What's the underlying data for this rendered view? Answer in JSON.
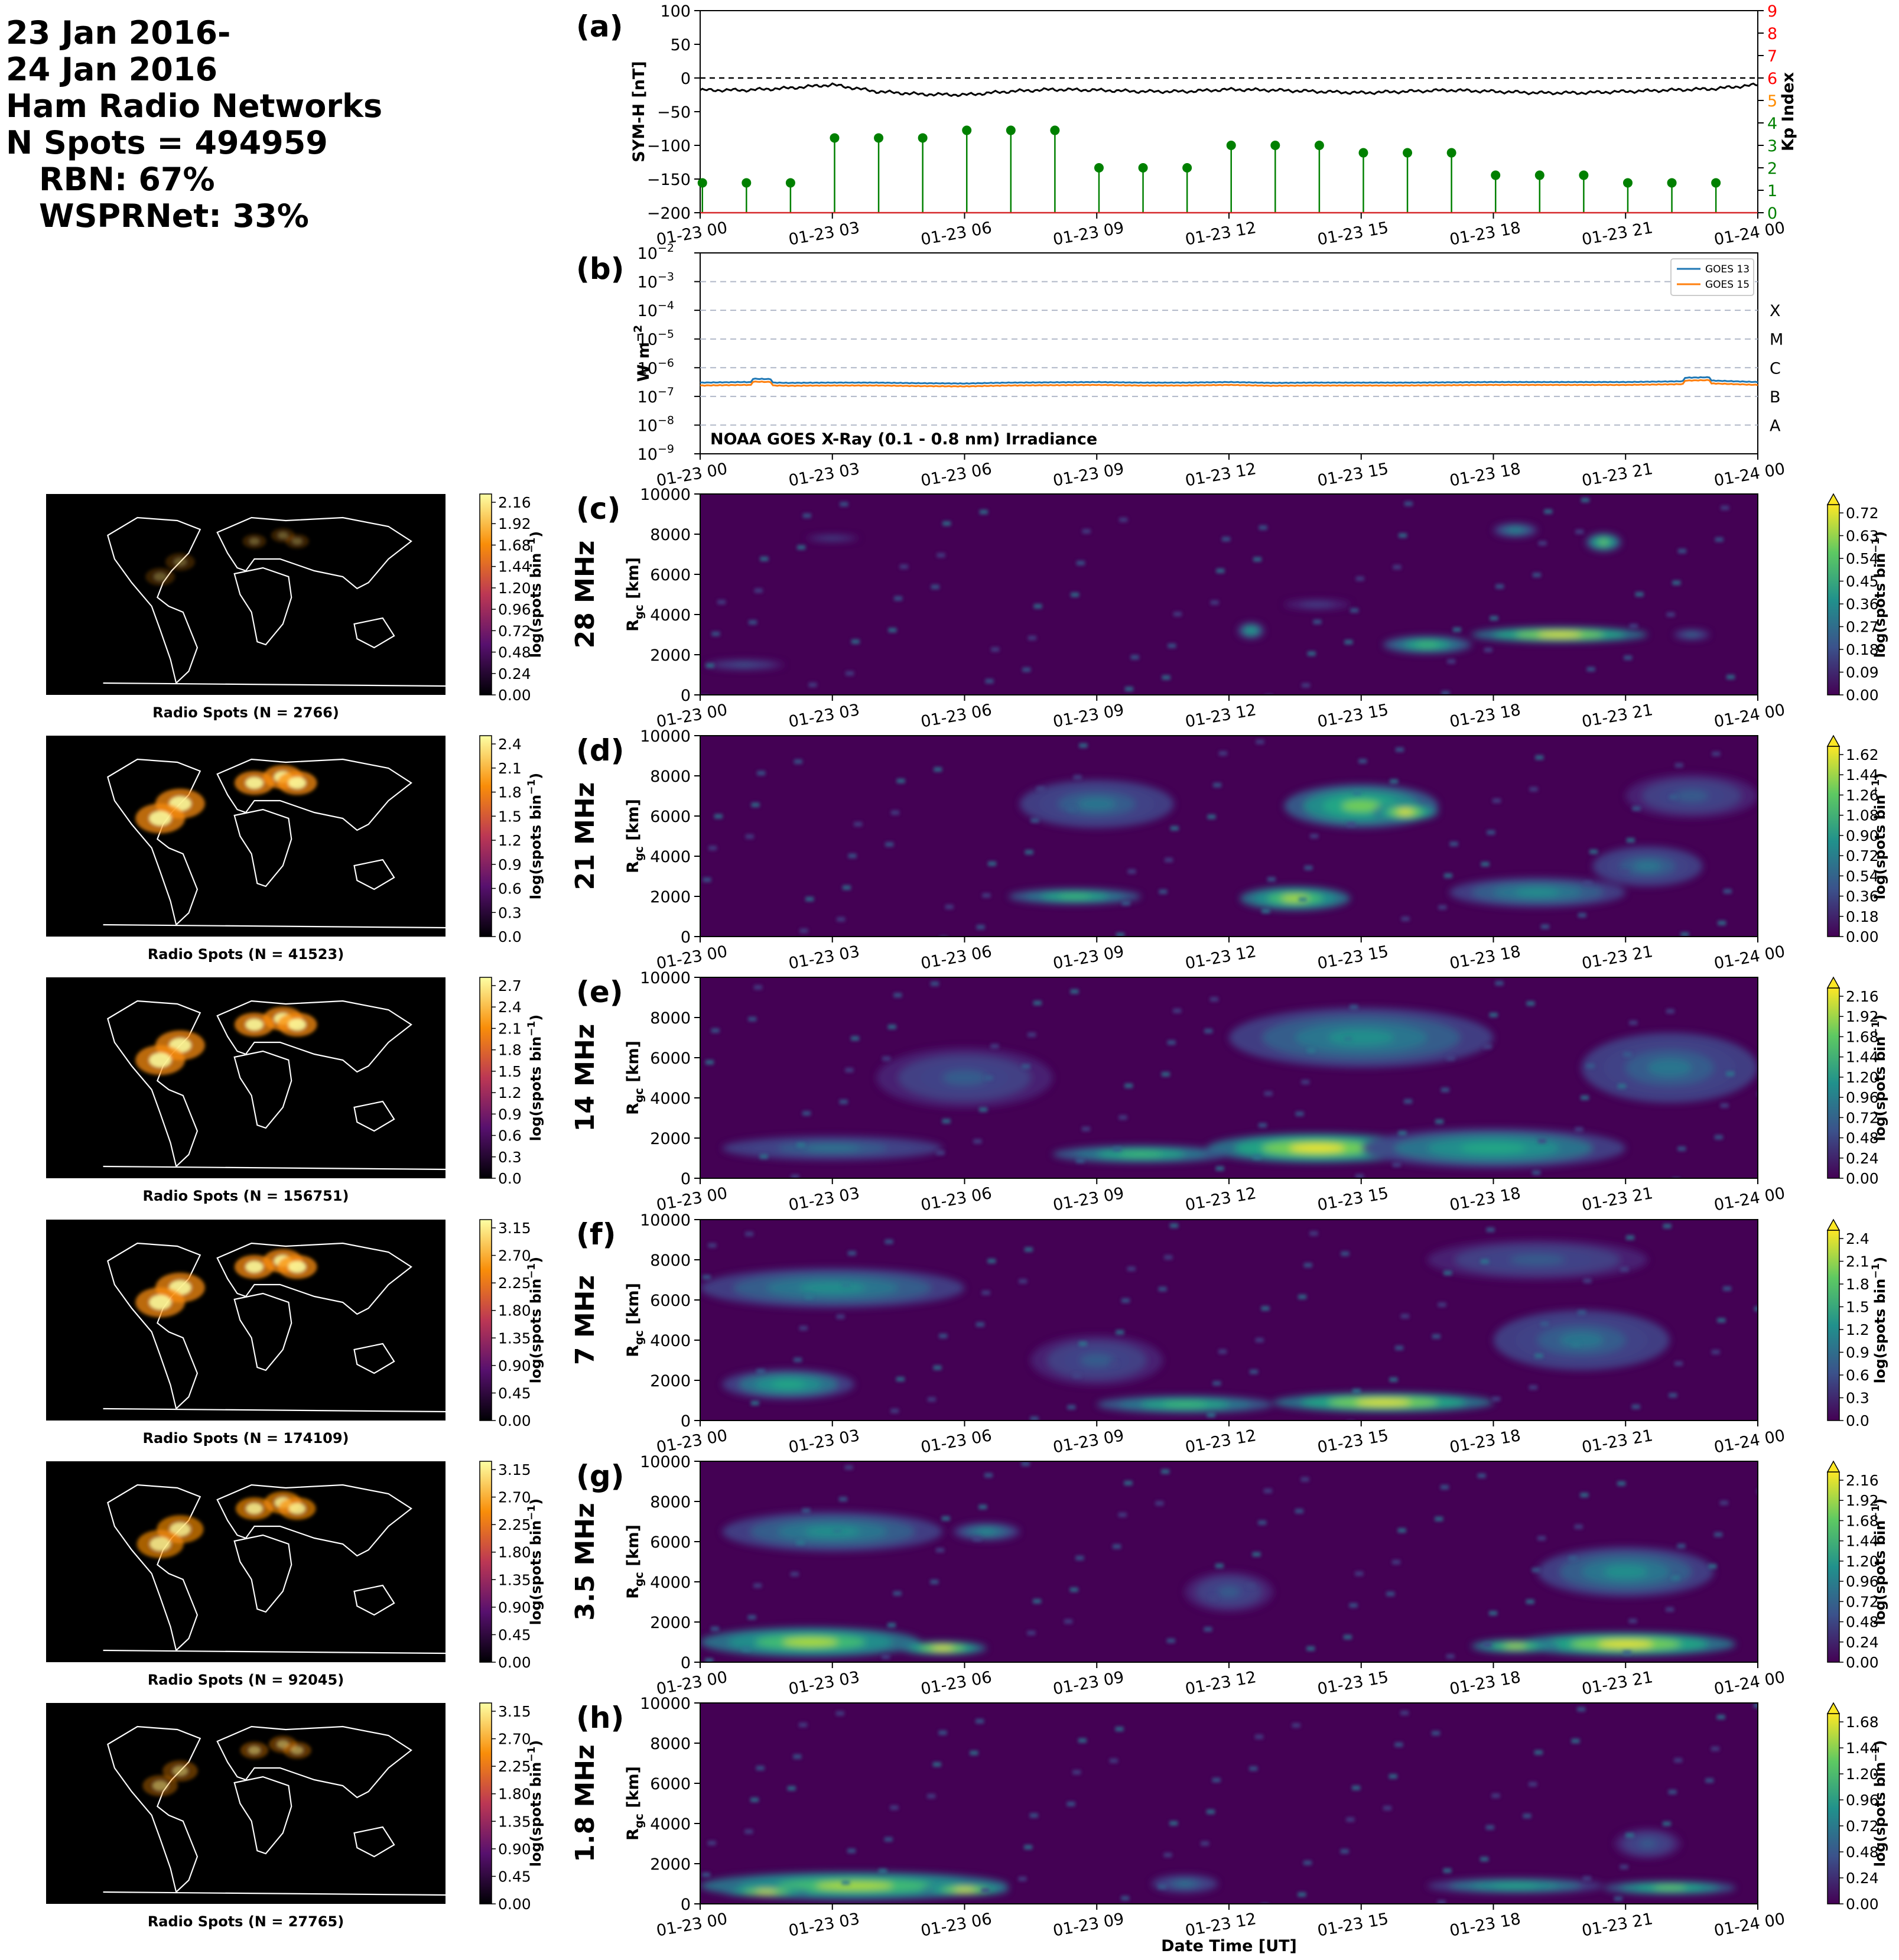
{
  "header": {
    "date_line1": "23 Jan 2016-",
    "date_line2": "24 Jan 2016",
    "network_title": "Ham Radio Networks",
    "n_spots": "N Spots = 494959",
    "rbn": "RBN: 67%",
    "wsprnet": "WSPRNet: 33%"
  },
  "time_ticks": [
    "01-23 00",
    "01-23 03",
    "01-23 06",
    "01-23 09",
    "01-23 12",
    "01-23 15",
    "01-23 18",
    "01-23 21",
    "01-24 00"
  ],
  "xlabel": "Date Time [UT]",
  "colors": {
    "symh_line": "#000000",
    "kp_stem": "#008000",
    "goes13": "#1f77b4",
    "goes15": "#ff7f0e",
    "kp_tick_green": "#008000",
    "kp_tick_orange": "#ff8c00",
    "kp_tick_red": "#ff0000"
  },
  "chart_data": [
    {
      "panel": "(a)",
      "type": "line",
      "ylabel": "SYM-H [nT]",
      "ylim": [
        -200,
        100
      ],
      "yticks": [
        100,
        50,
        0,
        -50,
        -100,
        -150,
        -200
      ],
      "y2label": "Kp Index",
      "y2lim": [
        0,
        9
      ],
      "y2ticks": [
        0,
        1,
        2,
        3,
        4,
        5,
        6,
        7,
        8,
        9
      ],
      "x_hours": [
        0,
        1,
        2,
        3,
        4,
        5,
        6,
        7,
        8,
        9,
        10,
        11,
        12,
        13,
        14,
        15,
        16,
        17,
        18,
        19,
        20,
        21,
        22,
        23,
        24
      ],
      "symh": [
        -18,
        -18,
        -15,
        -10,
        -20,
        -24,
        -25,
        -20,
        -17,
        -18,
        -20,
        -20,
        -17,
        -18,
        -20,
        -22,
        -20,
        -18,
        -20,
        -22,
        -22,
        -20,
        -18,
        -16,
        -10
      ],
      "kp_hours": [
        0,
        1,
        2,
        3,
        4,
        5,
        6,
        7,
        8,
        9,
        10,
        11,
        12,
        13,
        14,
        15,
        16,
        17,
        18,
        19,
        20,
        21,
        22,
        23
      ],
      "kp": [
        1.33,
        1.33,
        1.33,
        3.33,
        3.33,
        3.33,
        3.67,
        3.67,
        3.67,
        2,
        2,
        2,
        3,
        3,
        3,
        2.67,
        2.67,
        2.67,
        1.67,
        1.67,
        1.67,
        1.33,
        1.33,
        1.33
      ],
      "grid": false
    },
    {
      "panel": "(b)",
      "type": "line",
      "ylabel": "W m",
      "ylabel_exp": "−2",
      "ylim": [
        -9,
        -2
      ],
      "yscale": "log",
      "ytick_base": "10",
      "ytick_exps": [
        "−9",
        "−8",
        "−7",
        "−6",
        "−5",
        "−4",
        "−3",
        "−2"
      ],
      "flare_classes": [
        "A",
        "B",
        "C",
        "M",
        "X"
      ],
      "flare_class_levels": [
        -8,
        -7,
        -6,
        -5,
        -4
      ],
      "annotation": "NOAA GOES X-Ray (0.1 - 0.8 nm) Irradiance",
      "legend_placement": "top-right",
      "series": [
        {
          "name": "GOES 13",
          "log10_values_hourly": [
            -6.52,
            -6.5,
            -6.53,
            -6.52,
            -6.52,
            -6.54,
            -6.55,
            -6.52,
            -6.51,
            -6.5,
            -6.52,
            -6.52,
            -6.5,
            -6.53,
            -6.52,
            -6.52,
            -6.52,
            -6.51,
            -6.5,
            -6.5,
            -6.5,
            -6.5,
            -6.48,
            -6.45,
            -6.5
          ]
        },
        {
          "name": "GOES 15",
          "log10_values_hourly": [
            -6.62,
            -6.6,
            -6.63,
            -6.62,
            -6.62,
            -6.64,
            -6.65,
            -6.62,
            -6.61,
            -6.6,
            -6.62,
            -6.62,
            -6.6,
            -6.63,
            -6.62,
            -6.62,
            -6.62,
            -6.61,
            -6.6,
            -6.6,
            -6.6,
            -6.6,
            -6.58,
            -6.55,
            -6.6
          ]
        }
      ]
    },
    {
      "panel": "(c)",
      "type": "heatmap",
      "band": "28 MHz",
      "ylabel": "R",
      "ylabel_sub": "gc",
      "ylabel_unit": " [km]",
      "ylim": [
        0,
        10000
      ],
      "yticks": [
        0,
        2000,
        4000,
        6000,
        8000,
        10000
      ],
      "cbar_label": "log(spots bin",
      "cbar_exp": "−1",
      ")": "",
      "cbar_ticks": [
        "0.00",
        "0.09",
        "0.18",
        "0.27",
        "0.36",
        "0.45",
        "0.54",
        "0.63",
        "0.72"
      ],
      "map_cbar_ticks": [
        "0.00",
        "0.24",
        "0.48",
        "0.72",
        "0.96",
        "1.20",
        "1.44",
        "1.68",
        "1.92",
        "2.16"
      ],
      "map_label": "Radio Spots (N = 2766)"
    },
    {
      "panel": "(d)",
      "type": "heatmap",
      "band": "21 MHz",
      "ylabel": "R",
      "ylabel_sub": "gc",
      "ylabel_unit": " [km]",
      "ylim": [
        0,
        10000
      ],
      "yticks": [
        0,
        2000,
        4000,
        6000,
        8000,
        10000
      ],
      "cbar_label": "log(spots bin",
      "cbar_exp": "−1",
      "cbar_ticks": [
        "0.00",
        "0.18",
        "0.36",
        "0.54",
        "0.72",
        "0.90",
        "1.08",
        "1.26",
        "1.44",
        "1.62"
      ],
      "map_cbar_ticks": [
        "0.0",
        "0.3",
        "0.6",
        "0.9",
        "1.2",
        "1.5",
        "1.8",
        "2.1",
        "2.4"
      ],
      "map_label": "Radio Spots (N = 41523)"
    },
    {
      "panel": "(e)",
      "type": "heatmap",
      "band": "14 MHz",
      "ylabel": "R",
      "ylabel_sub": "gc",
      "ylabel_unit": " [km]",
      "ylim": [
        0,
        10000
      ],
      "yticks": [
        0,
        2000,
        4000,
        6000,
        8000,
        10000
      ],
      "cbar_label": "log(spots bin",
      "cbar_exp": "−1",
      "cbar_ticks": [
        "0.00",
        "0.24",
        "0.48",
        "0.72",
        "0.96",
        "1.20",
        "1.44",
        "1.68",
        "1.92",
        "2.16"
      ],
      "map_cbar_ticks": [
        "0.0",
        "0.3",
        "0.6",
        "0.9",
        "1.2",
        "1.5",
        "1.8",
        "2.1",
        "2.4",
        "2.7"
      ],
      "map_label": "Radio Spots (N = 156751)"
    },
    {
      "panel": "(f)",
      "type": "heatmap",
      "band": "7 MHz",
      "ylabel": "R",
      "ylabel_sub": "gc",
      "ylabel_unit": " [km]",
      "ylim": [
        0,
        10000
      ],
      "yticks": [
        0,
        2000,
        4000,
        6000,
        8000,
        10000
      ],
      "cbar_label": "log(spots bin",
      "cbar_exp": "−1",
      "cbar_ticks": [
        "0.0",
        "0.3",
        "0.6",
        "0.9",
        "1.2",
        "1.5",
        "1.8",
        "2.1",
        "2.4"
      ],
      "map_cbar_ticks": [
        "0.00",
        "0.45",
        "0.90",
        "1.35",
        "1.80",
        "2.25",
        "2.70",
        "3.15"
      ],
      "map_label": "Radio Spots (N = 174109)"
    },
    {
      "panel": "(g)",
      "type": "heatmap",
      "band": "3.5 MHz",
      "ylabel": "R",
      "ylabel_sub": "gc",
      "ylabel_unit": " [km]",
      "ylim": [
        0,
        10000
      ],
      "yticks": [
        0,
        2000,
        4000,
        6000,
        8000,
        10000
      ],
      "cbar_label": "log(spots bin",
      "cbar_exp": "−1",
      "cbar_ticks": [
        "0.00",
        "0.24",
        "0.48",
        "0.72",
        "0.96",
        "1.20",
        "1.44",
        "1.68",
        "1.92",
        "2.16"
      ],
      "map_cbar_ticks": [
        "0.00",
        "0.45",
        "0.90",
        "1.35",
        "1.80",
        "2.25",
        "2.70",
        "3.15"
      ],
      "map_label": "Radio Spots (N = 92045)"
    },
    {
      "panel": "(h)",
      "type": "heatmap",
      "band": "1.8 MHz",
      "ylabel": "R",
      "ylabel_sub": "gc",
      "ylabel_unit": " [km]",
      "ylim": [
        0,
        10000
      ],
      "yticks": [
        0,
        2000,
        4000,
        6000,
        8000,
        10000
      ],
      "cbar_label": "log(spots bin",
      "cbar_exp": "−1",
      "cbar_ticks": [
        "0.00",
        "0.24",
        "0.48",
        "0.72",
        "0.96",
        "1.20",
        "1.44",
        "1.68"
      ],
      "map_cbar_ticks": [
        "0.00",
        "0.45",
        "0.90",
        "1.35",
        "1.80",
        "2.25",
        "2.70",
        "3.15"
      ],
      "map_label": "Radio Spots (N = 27765)"
    }
  ]
}
